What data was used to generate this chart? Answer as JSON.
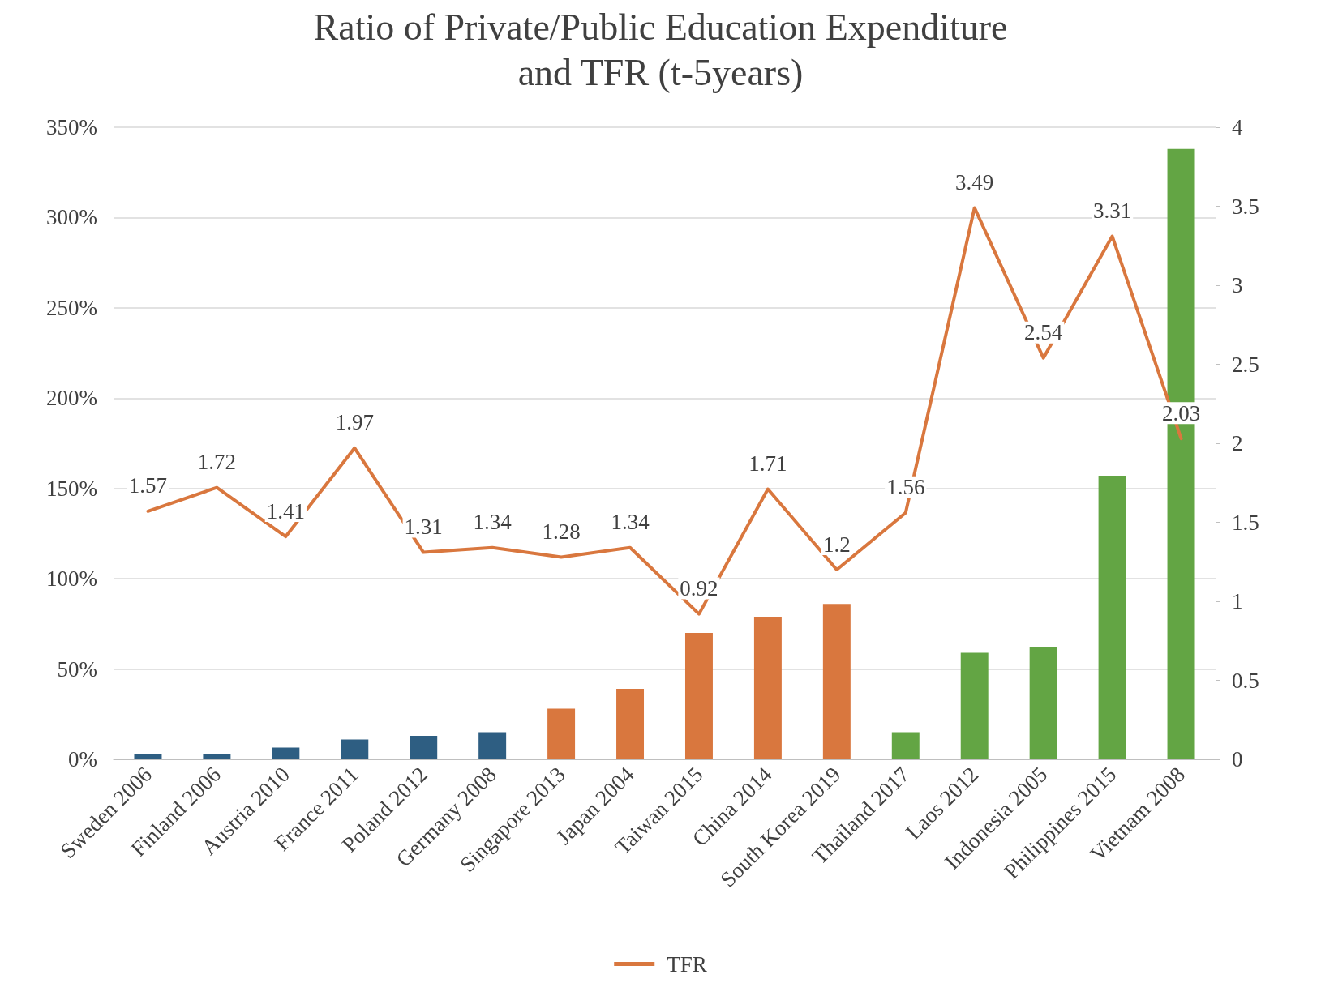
{
  "chart_data": {
    "type": "bar",
    "title": "Ratio of Private/Public Education Expenditure\nand TFR (t-5years)",
    "categories": [
      "Sweden 2006",
      "Finland 2006",
      "Austria 2010",
      "France 2011",
      "Poland 2012",
      "Germany 2008",
      "Singapore 2013",
      "Japan 2004",
      "Taiwan 2015",
      "China 2014",
      "South Korea 2019",
      "Thailand 2017",
      "Laos 2012",
      "Indonesia 2005",
      "Philippines 2015",
      "Vietnam 2008"
    ],
    "series": [
      {
        "values": [
          3,
          3,
          6.5,
          11,
          13,
          15,
          28,
          39,
          70,
          79,
          86,
          15,
          59,
          62,
          157,
          338
        ],
        "colors": [
          "#2e5e82",
          "#2e5e82",
          "#2e5e82",
          "#2e5e82",
          "#2e5e82",
          "#2e5e82",
          "#d9773e",
          "#d9773e",
          "#d9773e",
          "#d9773e",
          "#d9773e",
          "#63a544",
          "#63a544",
          "#63a544",
          "#63a544",
          "#63a544"
        ]
      },
      {
        "type": "line",
        "name": "TFR",
        "axis": "y2",
        "color": "#d9773e",
        "data_labels": true,
        "values": [
          1.57,
          1.72,
          1.41,
          1.97,
          1.31,
          1.34,
          1.28,
          1.34,
          0.92,
          1.71,
          1.2,
          1.56,
          3.49,
          2.54,
          3.31,
          2.03
        ]
      }
    ],
    "ylim": [
      0,
      350
    ],
    "yticks": [
      {
        "value": 0,
        "label": "0%"
      },
      {
        "value": 50,
        "label": "50%"
      },
      {
        "value": 100,
        "label": "100%"
      },
      {
        "value": 150,
        "label": "150%"
      },
      {
        "value": 200,
        "label": "200%"
      },
      {
        "value": 250,
        "label": "250%"
      },
      {
        "value": 300,
        "label": "300%"
      },
      {
        "value": 350,
        "label": "350%"
      }
    ],
    "y2lim": [
      0,
      4
    ],
    "y2ticks": [
      0,
      0.5,
      1,
      1.5,
      2,
      2.5,
      3,
      3.5,
      4
    ],
    "grid": "y",
    "legend": "bottom",
    "marker": "none",
    "line_style": "solid"
  }
}
